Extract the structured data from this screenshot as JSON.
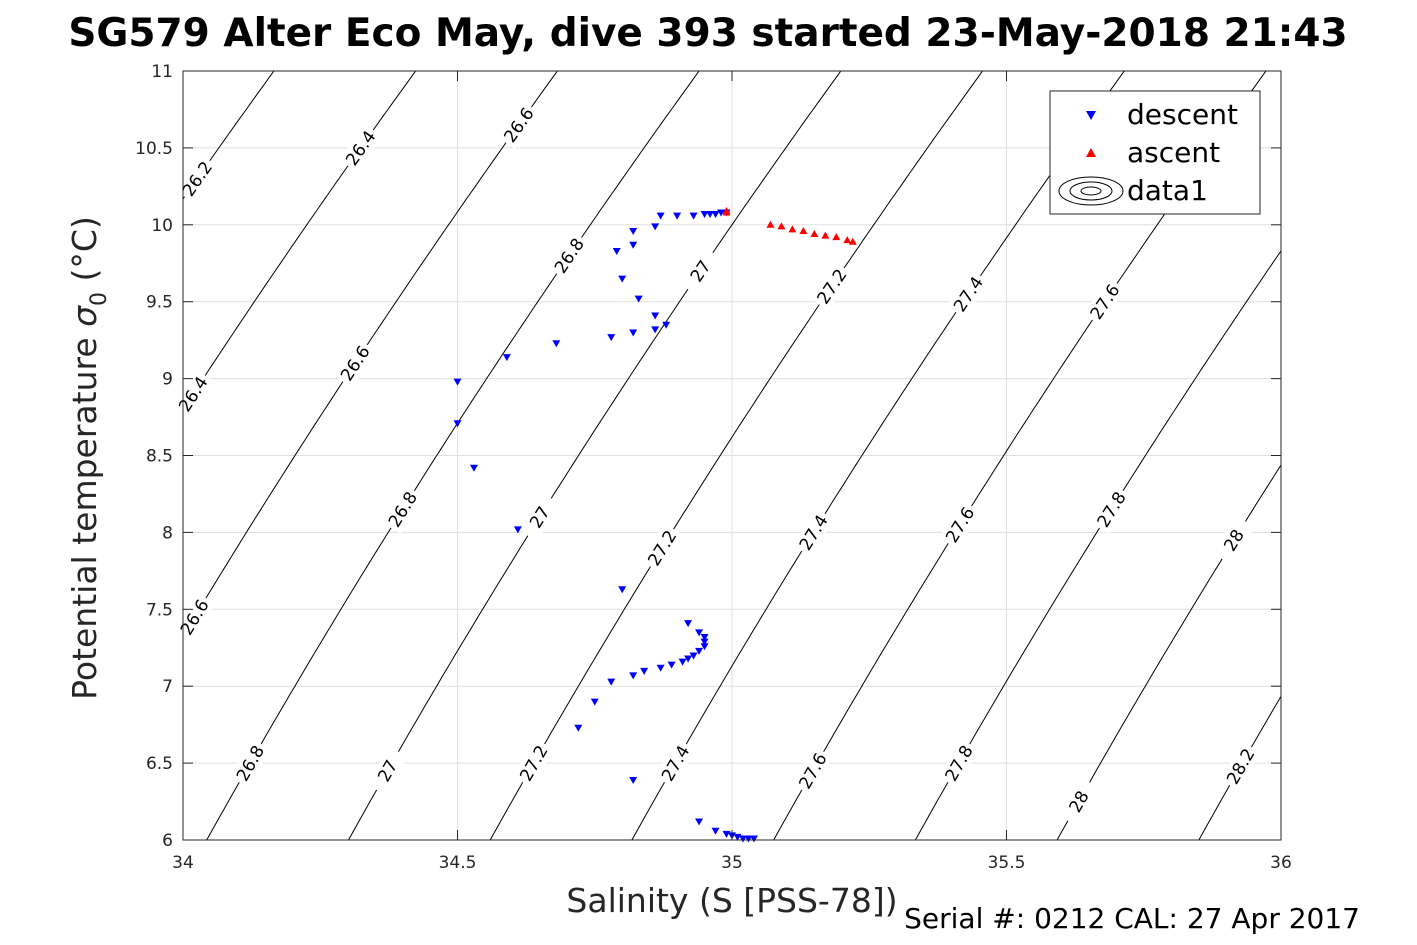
{
  "title": "SG579 Alter Eco May, dive 393 started 23-May-2018 21:43",
  "footer": "Serial #: 0212  CAL: 27 Apr 2017",
  "chart_data": {
    "type": "scatter",
    "xlabel": "Salinity (S [PSS-78])",
    "ylabel_main": "Potential temperature ",
    "ylabel_sym": "σ",
    "ylabel_sub": "0",
    "ylabel_unit": " (°C)",
    "xlim": [
      34,
      36
    ],
    "ylim": [
      6,
      11
    ],
    "xticks": [
      34,
      34.5,
      35,
      35.5,
      36
    ],
    "xtick_labels": [
      "34",
      "34.5",
      "35",
      "35.5",
      "36"
    ],
    "yticks": [
      6,
      6.5,
      7,
      7.5,
      8,
      8.5,
      9,
      9.5,
      10,
      10.5,
      11
    ],
    "ytick_labels": [
      "6",
      "6.5",
      "7",
      "7.5",
      "8",
      "8.5",
      "9",
      "9.5",
      "10",
      "10.5",
      "11"
    ],
    "grid": true,
    "legend_position": "top-right",
    "legend": [
      "descent",
      "ascent",
      "data1"
    ],
    "series": [
      {
        "name": "descent",
        "marker": "triangle-down",
        "color": "#0000ff",
        "points": [
          [
            34.95,
            10.07
          ],
          [
            34.96,
            10.07
          ],
          [
            34.97,
            10.07
          ],
          [
            34.98,
            10.08
          ],
          [
            34.99,
            10.08
          ],
          [
            34.93,
            10.06
          ],
          [
            34.9,
            10.06
          ],
          [
            34.87,
            10.06
          ],
          [
            34.86,
            9.99
          ],
          [
            34.82,
            9.96
          ],
          [
            34.82,
            9.87
          ],
          [
            34.79,
            9.83
          ],
          [
            34.8,
            9.65
          ],
          [
            34.83,
            9.52
          ],
          [
            34.86,
            9.41
          ],
          [
            34.88,
            9.35
          ],
          [
            34.86,
            9.32
          ],
          [
            34.82,
            9.3
          ],
          [
            34.78,
            9.27
          ],
          [
            34.68,
            9.23
          ],
          [
            34.59,
            9.14
          ],
          [
            34.5,
            8.98
          ],
          [
            34.5,
            8.71
          ],
          [
            34.53,
            8.42
          ],
          [
            34.61,
            8.02
          ],
          [
            34.8,
            7.63
          ],
          [
            34.92,
            7.41
          ],
          [
            34.94,
            7.35
          ],
          [
            34.95,
            7.32
          ],
          [
            34.95,
            7.29
          ],
          [
            34.95,
            7.26
          ],
          [
            34.94,
            7.23
          ],
          [
            34.93,
            7.2
          ],
          [
            34.92,
            7.18
          ],
          [
            34.91,
            7.16
          ],
          [
            34.89,
            7.14
          ],
          [
            34.87,
            7.12
          ],
          [
            34.84,
            7.1
          ],
          [
            34.82,
            7.07
          ],
          [
            34.78,
            7.03
          ],
          [
            34.75,
            6.9
          ],
          [
            34.72,
            6.73
          ],
          [
            34.82,
            6.39
          ],
          [
            34.94,
            6.12
          ],
          [
            34.97,
            6.06
          ],
          [
            34.99,
            6.04
          ],
          [
            35.0,
            6.03
          ],
          [
            35.01,
            6.02
          ],
          [
            35.02,
            6.01
          ],
          [
            35.03,
            6.01
          ],
          [
            35.04,
            6.01
          ]
        ]
      },
      {
        "name": "ascent",
        "marker": "triangle-up",
        "color": "#ff0000",
        "points": [
          [
            34.99,
            10.09
          ],
          [
            34.99,
            10.08
          ],
          [
            35.07,
            10.0
          ],
          [
            35.09,
            9.99
          ],
          [
            35.11,
            9.97
          ],
          [
            35.13,
            9.96
          ],
          [
            35.15,
            9.94
          ],
          [
            35.17,
            9.93
          ],
          [
            35.19,
            9.92
          ],
          [
            35.21,
            9.9
          ],
          [
            35.22,
            9.89
          ]
        ]
      }
    ],
    "density_contours": {
      "series_name": "data1",
      "color": "#000000",
      "label_levels": [
        26.2,
        26.4,
        26.6,
        26.8,
        27,
        27.2,
        27.4,
        27.6,
        27.8,
        28,
        28.2
      ],
      "curve_levels": [
        26.2,
        26.4,
        26.6,
        26.8,
        27,
        27.2,
        27.4,
        27.6,
        27.8,
        28,
        28.2
      ]
    }
  }
}
